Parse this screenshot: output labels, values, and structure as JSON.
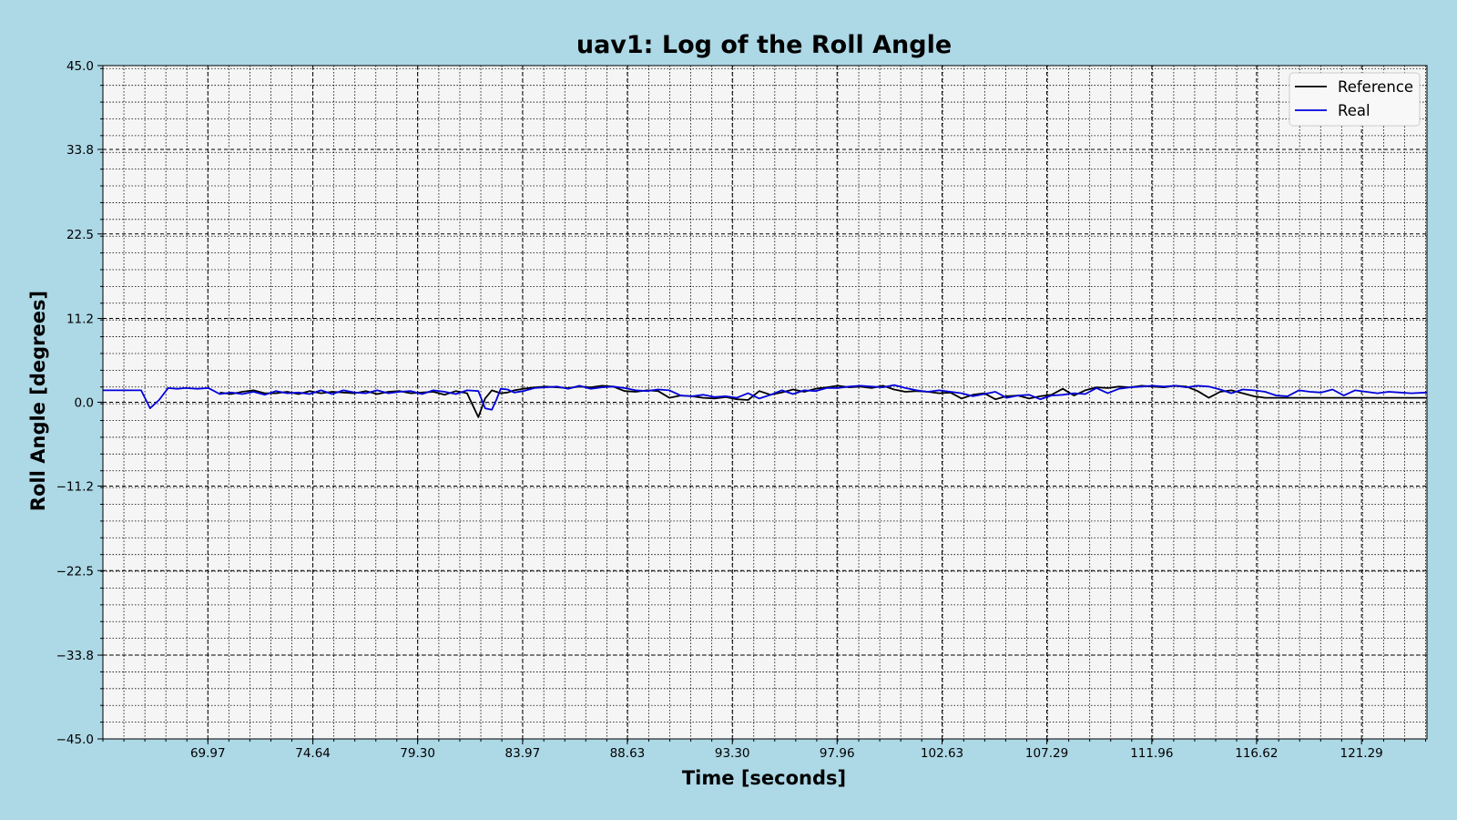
{
  "chart_data": {
    "type": "line",
    "title": "uav1: Log of the Roll Angle",
    "xlabel": "Time [seconds]",
    "ylabel": "Roll Angle [degrees]",
    "xlim": [
      65.3,
      124.2
    ],
    "ylim": [
      -45.0,
      45.0
    ],
    "x_ticks": [
      "69.97",
      "74.64",
      "79.30",
      "83.97",
      "88.63",
      "93.30",
      "97.96",
      "102.63",
      "107.29",
      "111.96",
      "116.62",
      "121.29"
    ],
    "y_ticks": [
      "45.0",
      "33.8",
      "22.5",
      "11.2",
      "0.0",
      "−11.2",
      "−22.5",
      "−33.8",
      "−45.0"
    ],
    "grid": true,
    "legend_position": "top-right",
    "colors": {
      "background": "#add8e6",
      "plot_area": "#f5f5f5",
      "reference": "#000000",
      "real": "#0000dd"
    },
    "series": [
      {
        "name": "Reference",
        "x": [
          70.5,
          71.0,
          71.5,
          72.0,
          72.5,
          73.0,
          73.5,
          74.0,
          74.5,
          75.0,
          75.5,
          76.0,
          76.5,
          77.0,
          77.5,
          78.0,
          78.5,
          79.0,
          79.5,
          80.0,
          80.5,
          81.0,
          81.5,
          82.0,
          82.3,
          82.6,
          82.8,
          83.0,
          83.3,
          83.6,
          84.0,
          84.5,
          85.0,
          85.5,
          86.0,
          86.5,
          87.0,
          87.5,
          88.0,
          88.5,
          89.0,
          89.5,
          90.0,
          90.5,
          91.0,
          91.5,
          92.0,
          92.5,
          93.0,
          93.5,
          94.0,
          94.5,
          95.0,
          95.5,
          96.0,
          96.5,
          97.0,
          97.5,
          98.0,
          98.5,
          99.0,
          99.5,
          100.0,
          100.5,
          101.0,
          101.5,
          102.0,
          102.5,
          103.0,
          103.5,
          104.0,
          104.5,
          105.0,
          105.5,
          106.0,
          106.5,
          107.0,
          107.5,
          108.0,
          108.5,
          109.0,
          109.5,
          110.0,
          110.5,
          111.0,
          111.5,
          112.0,
          112.5,
          113.0,
          113.5,
          114.0,
          114.5,
          115.0,
          115.5,
          116.0,
          116.5,
          117.0,
          118.0,
          119.0,
          120.0,
          121.0,
          122.0,
          123.0,
          124.2
        ],
        "y": [
          1.3,
          1.1,
          1.4,
          1.6,
          1.2,
          1.2,
          1.4,
          1.1,
          1.5,
          1.2,
          1.4,
          1.3,
          1.2,
          1.5,
          1.1,
          1.4,
          1.5,
          1.2,
          1.3,
          1.4,
          1.0,
          1.5,
          1.2,
          -2.0,
          0.5,
          1.6,
          1.4,
          1.2,
          1.3,
          1.6,
          1.8,
          2.0,
          2.1,
          2.0,
          1.9,
          2.1,
          2.0,
          2.2,
          2.1,
          1.5,
          1.4,
          1.6,
          1.5,
          0.6,
          0.9,
          0.8,
          0.6,
          0.5,
          0.7,
          0.4,
          0.3,
          1.5,
          1.0,
          1.3,
          1.7,
          1.4,
          1.8,
          2.0,
          2.2,
          2.0,
          2.1,
          1.9,
          2.2,
          1.7,
          1.4,
          1.5,
          1.4,
          1.2,
          1.3,
          0.5,
          1.0,
          1.2,
          0.4,
          0.8,
          0.9,
          0.5,
          0.8,
          1.0,
          1.8,
          0.9,
          1.6,
          2.0,
          1.9,
          2.1,
          2.0,
          2.2,
          2.1,
          2.0,
          2.2,
          2.1,
          1.5,
          0.6,
          1.4,
          1.6,
          1.2,
          0.8,
          0.6,
          0.6,
          0.6,
          0.6,
          0.6,
          0.6,
          0.6,
          0.6
        ]
      },
      {
        "name": "Real",
        "x": [
          65.3,
          67.0,
          67.4,
          67.8,
          68.2,
          68.6,
          69.0,
          69.5,
          70.0,
          70.5,
          71.0,
          71.5,
          72.0,
          72.5,
          73.0,
          73.5,
          74.0,
          74.5,
          75.0,
          75.5,
          76.0,
          76.5,
          77.0,
          77.5,
          78.0,
          78.5,
          79.0,
          79.5,
          80.0,
          80.5,
          81.0,
          81.5,
          82.0,
          82.3,
          82.6,
          82.8,
          83.0,
          83.3,
          83.6,
          84.0,
          84.5,
          85.0,
          85.5,
          86.0,
          86.5,
          87.0,
          87.5,
          88.0,
          88.5,
          89.0,
          89.5,
          90.0,
          90.5,
          91.0,
          91.5,
          92.0,
          92.5,
          93.0,
          93.5,
          94.0,
          94.5,
          95.0,
          95.5,
          96.0,
          96.5,
          97.0,
          97.5,
          98.0,
          98.5,
          99.0,
          99.5,
          100.0,
          100.5,
          101.0,
          101.5,
          102.0,
          102.5,
          103.0,
          103.5,
          104.0,
          104.5,
          105.0,
          105.5,
          106.0,
          106.5,
          107.0,
          107.5,
          108.0,
          108.5,
          109.0,
          109.5,
          110.0,
          110.5,
          111.0,
          111.5,
          112.0,
          112.5,
          113.0,
          113.5,
          114.0,
          114.5,
          115.0,
          115.5,
          116.0,
          116.5,
          117.0,
          117.5,
          118.0,
          118.5,
          119.0,
          119.5,
          120.0,
          120.5,
          121.0,
          121.5,
          122.0,
          122.5,
          123.0,
          123.5,
          124.2
        ],
        "y": [
          1.6,
          1.6,
          -0.8,
          0.3,
          1.9,
          1.8,
          1.9,
          1.8,
          1.9,
          1.1,
          1.3,
          1.1,
          1.4,
          1.0,
          1.5,
          1.2,
          1.3,
          1.1,
          1.6,
          1.1,
          1.6,
          1.3,
          1.2,
          1.6,
          1.2,
          1.4,
          1.5,
          1.1,
          1.6,
          1.4,
          1.1,
          1.6,
          1.5,
          -0.8,
          -1.0,
          0.3,
          1.8,
          1.7,
          1.3,
          1.5,
          1.9,
          2.0,
          2.1,
          1.8,
          2.2,
          1.8,
          2.0,
          2.1,
          1.9,
          1.6,
          1.5,
          1.7,
          1.6,
          0.9,
          0.8,
          1.0,
          0.7,
          0.8,
          0.6,
          1.2,
          0.5,
          1.0,
          1.6,
          1.1,
          1.6,
          1.5,
          1.9,
          1.9,
          2.1,
          2.2,
          2.1,
          2.0,
          2.3,
          1.9,
          1.6,
          1.4,
          1.6,
          1.4,
          1.2,
          0.8,
          1.1,
          1.4,
          0.6,
          0.9,
          1.0,
          0.4,
          0.9,
          1.0,
          1.2,
          1.1,
          1.9,
          1.2,
          1.8,
          2.0,
          2.1,
          2.2,
          2.1,
          2.2,
          2.0,
          2.2,
          2.1,
          1.7,
          1.2,
          1.7,
          1.6,
          1.4,
          0.9,
          0.8,
          1.6,
          1.4,
          1.3,
          1.7,
          0.9,
          1.6,
          1.4,
          1.2,
          1.4,
          1.3,
          1.2,
          1.3
        ]
      }
    ]
  }
}
